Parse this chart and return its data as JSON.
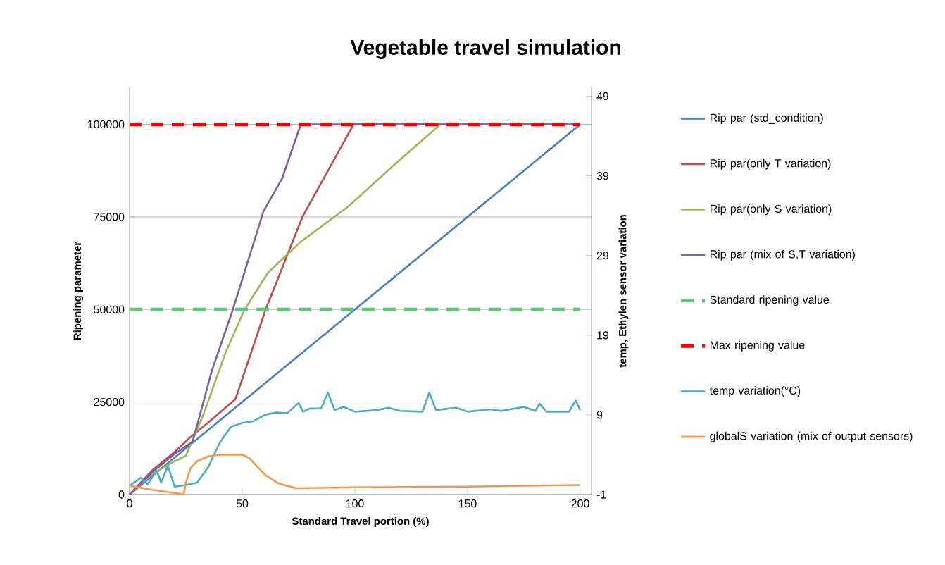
{
  "chart_data": {
    "type": "line",
    "title": "Vegetable travel simulation",
    "xlabel": "Standard Travel portion (%)",
    "ylabel": "Ripening parameter",
    "y2label": "temp, Ethylen sensor  variation",
    "xlim": [
      0,
      205
    ],
    "xticks": [
      0,
      50,
      100,
      150,
      200
    ],
    "ylim": [
      0,
      110000
    ],
    "yticks": [
      0,
      25000,
      50000,
      75000,
      100000
    ],
    "y2lim": [
      -1,
      50.1
    ],
    "y2ticks": [
      -1,
      9,
      19,
      29,
      39,
      49
    ],
    "grid": "y",
    "legend": "right",
    "series": [
      {
        "name": "Rip par (std_condition)",
        "color": "#4a7ebb",
        "x": [
          0,
          27,
          200
        ],
        "values": [
          0,
          13500,
          100000
        ]
      },
      {
        "name": "Rip par(only T variation)",
        "color": "#be4b48",
        "x": [
          0,
          10,
          20,
          27,
          35,
          47,
          60.4,
          76.7,
          99.4,
          200
        ],
        "values": [
          0,
          6500,
          11500,
          15500,
          19500,
          25800,
          50000,
          75000,
          100000,
          100000
        ]
      },
      {
        "name": "Rip par(only S variation)",
        "color": "#98b954",
        "x": [
          0,
          10,
          20,
          25,
          33,
          42.7,
          51,
          61.5,
          76,
          97,
          117.7,
          137.9,
          200
        ],
        "values": [
          0,
          5500,
          9000,
          10500,
          22000,
          38500,
          49900,
          60000,
          68300,
          77800,
          89200,
          100000,
          100000
        ]
      },
      {
        "name": "Rip par (mix of S,T variation)",
        "color": "#7d60a0",
        "x": [
          0,
          10,
          20,
          28,
          36.5,
          45.8,
          59.4,
          67.7,
          76,
          200
        ],
        "values": [
          0,
          6000,
          11000,
          14300,
          33400,
          49900,
          76500,
          85400,
          100000,
          100000
        ]
      },
      {
        "name": "Standard ripening value",
        "color": "#5cc878",
        "line_style": "dashed",
        "x": [
          0,
          200
        ],
        "values": [
          50000,
          50000
        ]
      },
      {
        "name": "Max ripening value",
        "color": "#ff0000",
        "line_style": "dashed",
        "x": [
          0,
          200
        ],
        "values": [
          100000,
          100000
        ]
      },
      {
        "name": "temp variation(°C)",
        "color": "#4bacc6",
        "axis": "y2",
        "x": [
          0,
          5,
          8,
          12,
          14,
          17,
          20,
          25,
          30,
          35,
          40,
          45,
          50,
          55,
          60,
          65,
          70,
          75,
          77,
          80,
          85,
          88,
          91,
          95,
          100,
          110,
          115,
          120,
          130,
          133,
          136,
          145,
          150,
          160,
          165,
          175,
          180,
          182,
          185,
          195,
          198,
          200
        ],
        "values": [
          0.1,
          1.1,
          0.3,
          2,
          0.5,
          2.6,
          0,
          0.2,
          0.5,
          2.5,
          5.5,
          7.5,
          8,
          8.2,
          9,
          9.3,
          9.2,
          10.5,
          9.4,
          9.8,
          9.8,
          11.8,
          9.6,
          10,
          9.4,
          9.6,
          9.9,
          9.5,
          9.4,
          11.8,
          9.6,
          9.9,
          9.4,
          9.7,
          9.5,
          10,
          9.5,
          10.4,
          9.4,
          9.4,
          10.8,
          9.6
        ]
      },
      {
        "name": "globalS variation (mix of output sensors)",
        "color": "#f79646",
        "axis": "y2",
        "x": [
          0,
          10,
          20,
          24,
          25,
          27,
          30,
          35,
          40,
          50,
          53,
          60,
          66,
          74,
          100,
          150,
          200
        ],
        "values": [
          0.1,
          -0.4,
          -0.8,
          -1,
          0.5,
          2.3,
          3.2,
          3.8,
          4,
          4,
          3.6,
          1.5,
          0.4,
          -0.2,
          -0.1,
          0,
          0.2
        ]
      }
    ]
  }
}
